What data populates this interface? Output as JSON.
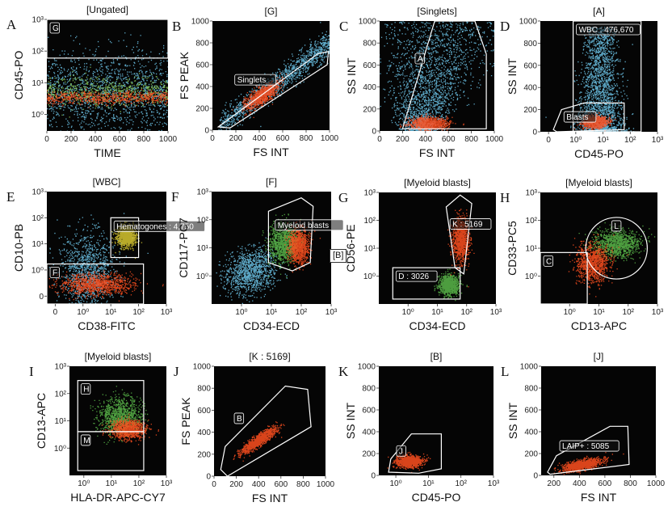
{
  "figure": {
    "side_label": "[B]"
  },
  "chart_data": [
    {
      "id": "A",
      "type": "scatter",
      "letter": "A",
      "title": "[Ungated]",
      "xlabel": "TIME",
      "ylabel": "CD45-PO",
      "x_scale": "linear",
      "xlim": [
        0,
        1000
      ],
      "x_ticks": [
        0,
        200,
        400,
        600,
        800,
        1000
      ],
      "x_tick_labels": [
        "0",
        "200",
        "400",
        "600",
        "800",
        "1000"
      ],
      "y_scale": "log",
      "ylim": [
        0.3,
        1000
      ],
      "y_ticks": [
        1,
        10,
        100,
        1000
      ],
      "y_tick_labels": [
        "10⁰",
        "10¹",
        "10²",
        "10³"
      ],
      "populations": [
        {
          "color": "#6fc8ec",
          "x_range": [
            0,
            1000
          ],
          "y_range": [
            0.4,
            60
          ],
          "density": "uniform-band"
        },
        {
          "color": "#8fd05a",
          "x_range": [
            0,
            1000
          ],
          "y_range": [
            1.5,
            20
          ],
          "density": "core"
        },
        {
          "color": "#ff5020",
          "x_range": [
            0,
            1000
          ],
          "y_range": [
            2,
            6
          ],
          "density": "core"
        }
      ],
      "gates": [
        {
          "name": "G",
          "label": "G",
          "shape": "rect",
          "x_range": [
            0,
            1000
          ],
          "y_range": [
            60,
            1000
          ]
        }
      ]
    },
    {
      "id": "B",
      "type": "scatter",
      "letter": "B",
      "title": "[G]",
      "xlabel": "FS INT",
      "ylabel": "FS PEAK",
      "x_scale": "linear",
      "xlim": [
        0,
        1000
      ],
      "x_ticks": [
        0,
        200,
        400,
        600,
        800,
        1000
      ],
      "x_tick_labels": [
        "0",
        "200",
        "400",
        "600",
        "800",
        "1000"
      ],
      "y_scale": "linear",
      "ylim": [
        0,
        1000
      ],
      "y_ticks": [
        0,
        200,
        400,
        600,
        800,
        1000
      ],
      "y_tick_labels": [
        "0",
        "200",
        "400",
        "600",
        "800",
        "1000"
      ],
      "populations": [
        {
          "color": "#6fc8ec",
          "shape": "diagonal",
          "x_range": [
            50,
            1000
          ],
          "slope": 0.8,
          "spread": 60
        },
        {
          "color": "#ff5020",
          "shape": "ellipse",
          "cx": 420,
          "cy": 320,
          "rx": 150,
          "ry": 60,
          "angle": 35
        }
      ],
      "gates": [
        {
          "name": "Singlets",
          "label": "Singlets",
          "shape": "polygon",
          "points": [
            [
              50,
              30
            ],
            [
              900,
              700
            ],
            [
              990,
              720
            ],
            [
              980,
              600
            ],
            [
              150,
              20
            ]
          ]
        }
      ]
    },
    {
      "id": "C",
      "type": "scatter",
      "letter": "C",
      "title": "[Singlets]",
      "xlabel": "FS INT",
      "ylabel": "SS INT",
      "x_scale": "linear",
      "xlim": [
        0,
        1000
      ],
      "x_ticks": [
        0,
        200,
        400,
        600,
        800,
        1000
      ],
      "x_tick_labels": [
        "0",
        "200",
        "400",
        "600",
        "800",
        "1000"
      ],
      "y_scale": "linear",
      "ylim": [
        0,
        1000
      ],
      "y_ticks": [
        0,
        200,
        400,
        600,
        800,
        1000
      ],
      "y_tick_labels": [
        "0",
        "200",
        "400",
        "600",
        "800",
        "1000"
      ],
      "populations": [
        {
          "color": "#6fc8ec",
          "shape": "cone",
          "x_range": [
            200,
            950
          ],
          "y_range": [
            0,
            1000
          ]
        },
        {
          "color": "#ff5020",
          "shape": "ellipse",
          "cx": 430,
          "cy": 70,
          "rx": 150,
          "ry": 50,
          "angle": 0
        }
      ],
      "gates": [
        {
          "name": "A",
          "label": "A",
          "shape": "polygon",
          "points": [
            [
              200,
              20
            ],
            [
              480,
              1000
            ],
            [
              830,
              1000
            ],
            [
              930,
              700
            ],
            [
              930,
              20
            ]
          ]
        }
      ]
    },
    {
      "id": "D",
      "type": "scatter",
      "letter": "D",
      "title": "[A]",
      "xlabel": "CD45-PO",
      "ylabel": "SS INT",
      "x_scale": "log",
      "xlim": [
        0.05,
        1000
      ],
      "x_ticks": [
        0.1,
        1,
        10,
        100,
        1000
      ],
      "x_tick_labels": [
        "0",
        "10⁰",
        "10¹",
        "10²",
        "10³"
      ],
      "y_scale": "linear",
      "ylim": [
        0,
        1000
      ],
      "y_ticks": [
        0,
        200,
        400,
        600,
        800,
        1000
      ],
      "y_tick_labels": [
        "0",
        "200",
        "400",
        "600",
        "800",
        "1000"
      ],
      "populations": [
        {
          "color": "#6fc8ec",
          "shape": "column",
          "cx": 8,
          "x_spread": 0.45,
          "y_range": [
            0,
            950
          ]
        },
        {
          "color": "#ff5020",
          "shape": "ellipse",
          "cx": 5,
          "cy": 90,
          "rx": 0.4,
          "ry": 50,
          "angle": 0
        }
      ],
      "gates": [
        {
          "name": "WBC",
          "label": "WBC : 476,670",
          "shape": "rect",
          "x_range": [
            0.8,
            250
          ],
          "y_range": [
            0,
            1000
          ]
        },
        {
          "name": "Blasts",
          "label": "Blasts",
          "shape": "polygon",
          "points": [
            [
              0.15,
              20
            ],
            [
              0.3,
              200
            ],
            [
              2,
              260
            ],
            [
              60,
              260
            ],
            [
              60,
              20
            ],
            [
              0.2,
              0
            ]
          ]
        }
      ]
    },
    {
      "id": "E",
      "type": "scatter",
      "letter": "E",
      "title": "[WBC]",
      "xlabel": "CD38-FITC",
      "ylabel": "CD10-PB",
      "x_scale": "log",
      "xlim": [
        0.05,
        1000
      ],
      "x_ticks": [
        0.1,
        1,
        10,
        100,
        1000
      ],
      "x_tick_labels": [
        "0",
        "10⁰",
        "10¹",
        "10²",
        "10³"
      ],
      "y_scale": "log",
      "ylim": [
        0.05,
        1000
      ],
      "y_ticks": [
        0.1,
        1,
        10,
        100,
        1000
      ],
      "y_tick_labels": [
        "0",
        "10⁰",
        "10¹",
        "10²",
        "10³"
      ],
      "populations": [
        {
          "color": "#6fc8ec",
          "shape": "ellipse",
          "cx": 1.5,
          "cy": 1,
          "rx": 0.9,
          "ry": 1.3,
          "angle": 0
        },
        {
          "color": "#ff5020",
          "shape": "ellipse",
          "cx": 3,
          "cy": 0.3,
          "rx": 1.2,
          "ry": 0.35,
          "angle": 0
        },
        {
          "color": "#d8c830",
          "shape": "ellipse",
          "cx": 35,
          "cy": 20,
          "rx": 0.3,
          "ry": 0.35,
          "angle": 0
        }
      ],
      "gates": [
        {
          "name": "Hematogones",
          "label": "Hematogones : 4,750",
          "shape": "rect",
          "x_range": [
            10,
            100
          ],
          "y_range": [
            3,
            100
          ]
        },
        {
          "name": "F",
          "label": "F",
          "shape": "rect",
          "x_range": [
            0.05,
            150
          ],
          "y_range": [
            0.05,
            1.7
          ]
        }
      ]
    },
    {
      "id": "F",
      "type": "scatter",
      "letter": "F",
      "title": "[F]",
      "xlabel": "CD34-ECD",
      "ylabel": "CD117-PC7",
      "x_scale": "log",
      "xlim": [
        0.1,
        1000
      ],
      "x_ticks": [
        1,
        10,
        100,
        1000
      ],
      "x_tick_labels": [
        "10⁰",
        "10¹",
        "10²",
        "10³"
      ],
      "y_scale": "log",
      "ylim": [
        0.1,
        1000
      ],
      "y_ticks": [
        1,
        10,
        100,
        1000
      ],
      "y_tick_labels": [
        "10⁰",
        "10¹",
        "10²",
        "10³"
      ],
      "populations": [
        {
          "color": "#6fc8ec",
          "shape": "ellipse",
          "cx": 2,
          "cy": 1.5,
          "rx": 0.8,
          "ry": 0.7,
          "angle": 35
        },
        {
          "color": "#5ab84a",
          "shape": "ellipse",
          "cx": 25,
          "cy": 15,
          "rx": 0.45,
          "ry": 0.6,
          "angle": 0
        },
        {
          "color": "#ff5020",
          "shape": "ellipse",
          "cx": 80,
          "cy": 12,
          "rx": 0.3,
          "ry": 0.55,
          "angle": 0
        }
      ],
      "gates": [
        {
          "name": "Myeloid blasts",
          "label": "Myeloid blasts",
          "shape": "polygon",
          "points": [
            [
              8,
              200
            ],
            [
              100,
              600
            ],
            [
              250,
              300
            ],
            [
              200,
              3
            ],
            [
              50,
              1.5
            ],
            [
              8,
              3
            ]
          ]
        }
      ]
    },
    {
      "id": "G",
      "type": "scatter",
      "letter": "G",
      "title": "[Myeloid blasts]",
      "xlabel": "CD34-ECD",
      "ylabel": "CD56-PE",
      "x_scale": "log",
      "xlim": [
        0.1,
        1000
      ],
      "x_ticks": [
        1,
        10,
        100,
        1000
      ],
      "x_tick_labels": [
        "10⁰",
        "10¹",
        "10²",
        "10³"
      ],
      "y_scale": "log",
      "ylim": [
        0.1,
        1000
      ],
      "y_ticks": [
        1,
        10,
        100,
        1000
      ],
      "y_tick_labels": [
        "10⁰",
        "10¹",
        "10²",
        "10³"
      ],
      "populations": [
        {
          "color": "#5ab84a",
          "shape": "ellipse",
          "cx": 25,
          "cy": 0.5,
          "rx": 0.3,
          "ry": 0.3,
          "angle": 0
        },
        {
          "color": "#ff5020",
          "shape": "ellipse",
          "cx": 60,
          "cy": 20,
          "rx": 0.25,
          "ry": 0.7,
          "angle": 0
        }
      ],
      "gates": [
        {
          "name": "K",
          "label": "K : 5169",
          "shape": "polygon",
          "points": [
            [
              20,
              300
            ],
            [
              60,
              800
            ],
            [
              150,
              400
            ],
            [
              80,
              1.2
            ],
            [
              40,
              2
            ]
          ]
        },
        {
          "name": "D",
          "label": "D : 3026",
          "shape": "rect",
          "x_range": [
            0.3,
            60
          ],
          "y_range": [
            0.15,
            2
          ]
        }
      ]
    },
    {
      "id": "H",
      "type": "scatter",
      "letter": "H",
      "title": "[Myeloid blasts]",
      "xlabel": "CD13-APC",
      "ylabel": "CD33-PC5",
      "x_scale": "log",
      "xlim": [
        0.1,
        1000
      ],
      "x_ticks": [
        1,
        10,
        100,
        1000
      ],
      "x_tick_labels": [
        "10⁰",
        "10¹",
        "10²",
        "10³"
      ],
      "y_scale": "log",
      "ylim": [
        0.1,
        1000
      ],
      "y_ticks": [
        1,
        10,
        100,
        1000
      ],
      "y_tick_labels": [
        "10⁰",
        "10¹",
        "10²",
        "10³"
      ],
      "populations": [
        {
          "color": "#5ab84a",
          "shape": "ellipse",
          "cx": 40,
          "cy": 15,
          "rx": 0.7,
          "ry": 0.45,
          "angle": 0
        },
        {
          "color": "#ff5020",
          "shape": "ellipse",
          "cx": 6,
          "cy": 3,
          "rx": 0.5,
          "ry": 0.6,
          "angle": 0
        }
      ],
      "gates": [
        {
          "name": "L",
          "label": "L",
          "shape": "circle",
          "cx": 40,
          "cy": 10,
          "r_decades": 1.05
        },
        {
          "name": "C",
          "label": "C",
          "shape": "rect",
          "x_range": [
            0.1,
            4
          ],
          "y_range": [
            0.1,
            7
          ]
        }
      ]
    },
    {
      "id": "I",
      "type": "scatter",
      "letter": "I",
      "title": "[Myeloid blasts]",
      "xlabel": "HLA-DR-APC-CY7",
      "ylabel": "CD13-APC",
      "x_scale": "log",
      "xlim": [
        0.3,
        1000
      ],
      "x_ticks": [
        1,
        10,
        100,
        1000
      ],
      "x_tick_labels": [
        "10⁰",
        "10¹",
        "10²",
        "10³"
      ],
      "y_scale": "log",
      "ylim": [
        0.1,
        1000
      ],
      "y_ticks": [
        1,
        10,
        100,
        1000
      ],
      "y_tick_labels": [
        "10⁰",
        "10¹",
        "10²",
        "10³"
      ],
      "populations": [
        {
          "color": "#5ab84a",
          "shape": "ellipse",
          "cx": 20,
          "cy": 15,
          "rx": 0.7,
          "ry": 0.6,
          "angle": 0
        },
        {
          "color": "#ff5020",
          "shape": "ellipse",
          "cx": 40,
          "cy": 5,
          "rx": 0.55,
          "ry": 0.3,
          "angle": 0
        }
      ],
      "gates": [
        {
          "name": "H",
          "label": "H",
          "shape": "rect",
          "x_range": [
            0.6,
            150
          ],
          "y_range": [
            4,
            300
          ]
        },
        {
          "name": "M",
          "label": "M",
          "shape": "rect",
          "x_range": [
            0.6,
            150
          ],
          "y_range": [
            0.15,
            4
          ]
        }
      ]
    },
    {
      "id": "J",
      "type": "scatter",
      "letter": "J",
      "title": "[K : 5169]",
      "xlabel": "FS INT",
      "ylabel": "FS PEAK",
      "x_scale": "linear",
      "xlim": [
        0,
        1000
      ],
      "x_ticks": [
        0,
        200,
        400,
        600,
        800,
        1000
      ],
      "x_tick_labels": [
        "0",
        "200",
        "400",
        "600",
        "800",
        "1000"
      ],
      "y_scale": "linear",
      "ylim": [
        0,
        1000
      ],
      "y_ticks": [
        0,
        200,
        400,
        600,
        800,
        1000
      ],
      "y_tick_labels": [
        "0",
        "200",
        "400",
        "600",
        "800",
        "1000"
      ],
      "populations": [
        {
          "color": "#ff5020",
          "shape": "ellipse",
          "cx": 400,
          "cy": 330,
          "rx": 170,
          "ry": 40,
          "angle": 35
        }
      ],
      "gates": [
        {
          "name": "B",
          "label": "B",
          "shape": "polygon",
          "points": [
            [
              60,
              60
            ],
            [
              100,
              270
            ],
            [
              640,
              820
            ],
            [
              840,
              790
            ],
            [
              870,
              450
            ],
            [
              120,
              0
            ]
          ]
        }
      ]
    },
    {
      "id": "K",
      "type": "scatter",
      "letter": "K",
      "title": "[B]",
      "xlabel": "CD45-PO",
      "ylabel": "SS INT",
      "x_scale": "log",
      "xlim": [
        0.3,
        1000
      ],
      "x_ticks": [
        1,
        10,
        100,
        1000
      ],
      "x_tick_labels": [
        "10⁰",
        "10¹",
        "10²",
        "10³"
      ],
      "y_scale": "linear",
      "ylim": [
        0,
        1000
      ],
      "y_ticks": [
        0,
        200,
        400,
        600,
        800,
        1000
      ],
      "y_tick_labels": [
        "0",
        "200",
        "400",
        "600",
        "800",
        "1000"
      ],
      "populations": [
        {
          "color": "#ff5020",
          "shape": "ellipse",
          "cx": 2.5,
          "cy": 130,
          "rx": 0.35,
          "ry": 50,
          "angle": 0
        }
      ],
      "gates": [
        {
          "name": "J",
          "label": "J",
          "shape": "polygon",
          "points": [
            [
              0.6,
              30
            ],
            [
              0.7,
              150
            ],
            [
              3,
              380
            ],
            [
              25,
              380
            ],
            [
              25,
              60
            ],
            [
              5,
              20
            ]
          ]
        }
      ]
    },
    {
      "id": "L",
      "type": "scatter",
      "letter": "L",
      "title": "[J]",
      "xlabel": "FS INT",
      "ylabel": "SS INT",
      "x_scale": "linear",
      "xlim": [
        100,
        1000
      ],
      "x_ticks": [
        200,
        400,
        600,
        800,
        1000
      ],
      "x_tick_labels": [
        "200",
        "400",
        "600",
        "800",
        "1000"
      ],
      "y_scale": "linear",
      "ylim": [
        0,
        1000
      ],
      "y_ticks": [
        0,
        200,
        400,
        600,
        800,
        1000
      ],
      "y_tick_labels": [
        "0",
        "200",
        "400",
        "600",
        "800",
        "1000"
      ],
      "populations": [
        {
          "color": "#ff5020",
          "shape": "ellipse",
          "cx": 420,
          "cy": 100,
          "rx": 140,
          "ry": 40,
          "angle": 12
        }
      ],
      "gates": [
        {
          "name": "LAIP+",
          "label": "LAIP+ : 5085",
          "shape": "polygon",
          "points": [
            [
              150,
              30
            ],
            [
              220,
              180
            ],
            [
              640,
              450
            ],
            [
              780,
              450
            ],
            [
              790,
              100
            ],
            [
              170,
              10
            ]
          ]
        }
      ]
    }
  ]
}
